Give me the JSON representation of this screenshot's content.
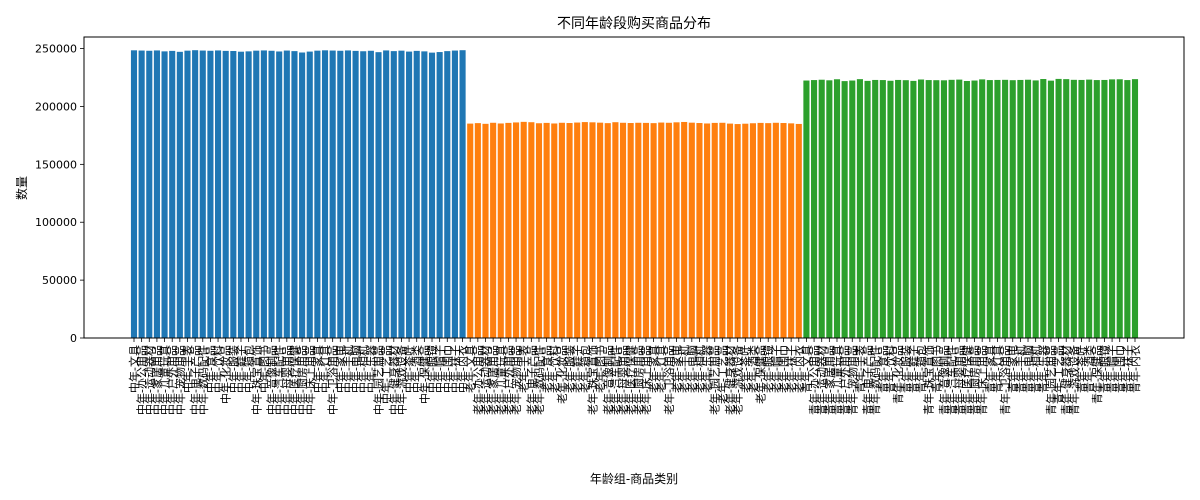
{
  "chart_data": {
    "type": "bar",
    "title": "不同年龄段购买商品分布",
    "xlabel": "年龄组-商品类别",
    "ylabel": "数量",
    "ylim": [
      0,
      260000
    ],
    "yticks": [
      0,
      50000,
      100000,
      150000,
      200000,
      250000
    ],
    "grid": false,
    "colors": {
      "中年": "#1f77b4",
      "老年": "#ff7f0e",
      "青年": "#2ca02c"
    },
    "categories": [
      "中年-文具",
      "中年-办公用品",
      "中年-运动器材",
      "中年-家居用品",
      "中年-儿童玩具",
      "中年-户外用品",
      "中年-宠物用品",
      "中年-手表",
      "中年-电子产品",
      "中年-数码配件",
      "中年-食品",
      "中年-饮料",
      "中年-化妆品",
      "中年-服装",
      "中年-鞋子",
      "中年-箱包",
      "中年-珠宝首饰",
      "中年-图书",
      "中年-音像制品",
      "中年-汽车配件",
      "中年-母婴用品",
      "中年-医疗保健",
      "中年-厨房用品",
      "中年-床上用品",
      "中年-家具",
      "中年-灯具",
      "中年-卫浴用品",
      "中年-家电",
      "中年-手机",
      "中年-电脑",
      "中年-相机",
      "中年-乐器",
      "中年-园艺用品",
      "中年-工艺品",
      "中年-健身器材",
      "中年-游戏设备",
      "中年-茶叶",
      "中年-酒类",
      "中年-保健品",
      "中年-眼镜",
      "中年-帽子",
      "中年-围巾",
      "中年-袜子",
      "中年-内衣",
      "老年-文具",
      "老年-办公用品",
      "老年-运动器材",
      "老年-家居用品",
      "老年-儿童玩具",
      "老年-户外用品",
      "老年-宠物用品",
      "老年-手表",
      "老年-电子产品",
      "老年-数码配件",
      "老年-食品",
      "老年-饮料",
      "老年-化妆品",
      "老年-服装",
      "老年-鞋子",
      "老年-箱包",
      "老年-珠宝首饰",
      "老年-图书",
      "老年-音像制品",
      "老年-汽车配件",
      "老年-母婴用品",
      "老年-医疗保健",
      "老年-厨房用品",
      "老年-床上用品",
      "老年-家具",
      "老年-灯具",
      "老年-卫浴用品",
      "老年-家电",
      "老年-手机",
      "老年-电脑",
      "老年-相机",
      "老年-乐器",
      "老年-园艺用品",
      "老年-工艺品",
      "老年-健身器材",
      "老年-游戏设备",
      "老年-茶叶",
      "老年-酒类",
      "老年-保健品",
      "老年-眼镜",
      "老年-帽子",
      "老年-围巾",
      "老年-袜子",
      "老年-内衣",
      "青年-文具",
      "青年-办公用品",
      "青年-运动器材",
      "青年-家居用品",
      "青年-儿童玩具",
      "青年-户外用品",
      "青年-宠物用品",
      "青年-手表",
      "青年-电子产品",
      "青年-数码配件",
      "青年-食品",
      "青年-饮料",
      "青年-化妆品",
      "青年-服装",
      "青年-鞋子",
      "青年-箱包",
      "青年-珠宝首饰",
      "青年-图书",
      "青年-音像制品",
      "青年-汽车配件",
      "青年-母婴用品",
      "青年-医疗保健",
      "青年-厨房用品",
      "青年-床上用品",
      "青年-家具",
      "青年-灯具",
      "青年-卫浴用品",
      "青年-家电",
      "青年-手机",
      "青年-电脑",
      "青年-相机",
      "青年-乐器",
      "青年-园艺用品",
      "青年-工艺品",
      "青年-健身器材",
      "青年-游戏设备",
      "青年-茶叶",
      "青年-酒类",
      "青年-保健品",
      "青年-眼镜",
      "青年-帽子",
      "青年-围巾",
      "青年-袜子",
      "青年-内衣"
    ],
    "values": [
      248500,
      248300,
      248100,
      248400,
      247600,
      248000,
      247200,
      248200,
      248600,
      248300,
      248100,
      248400,
      248000,
      247900,
      247300,
      247600,
      248200,
      248400,
      248100,
      247500,
      248300,
      247800,
      246600,
      247400,
      248200,
      248500,
      248300,
      248100,
      248400,
      248000,
      247700,
      248100,
      246900,
      248400,
      247800,
      248200,
      247400,
      248000,
      247600,
      246500,
      247000,
      247800,
      248300,
      248600,
      185200,
      185600,
      185000,
      185900,
      185300,
      185800,
      186200,
      186700,
      186400,
      185500,
      185800,
      185300,
      185900,
      185700,
      186100,
      186500,
      186300,
      186000,
      185600,
      186400,
      185900,
      185700,
      185900,
      185800,
      185600,
      186100,
      185900,
      186300,
      186600,
      186000,
      185700,
      185300,
      185800,
      185900,
      185200,
      184800,
      185100,
      185500,
      185800,
      185600,
      185900,
      185700,
      185400,
      184900,
      222400,
      222800,
      223100,
      222600,
      223500,
      221900,
      222400,
      223600,
      222100,
      222900,
      222800,
      222200,
      222900,
      222700,
      222100,
      223300,
      222800,
      222700,
      222600,
      223000,
      223200,
      222000,
      222400,
      223400,
      222800,
      222900,
      223000,
      222700,
      222900,
      223100,
      222500,
      223700,
      222300,
      223800,
      223600,
      223000,
      222900,
      223200,
      222800,
      222900,
      223400,
      223500,
      222800,
      223600
    ]
  }
}
